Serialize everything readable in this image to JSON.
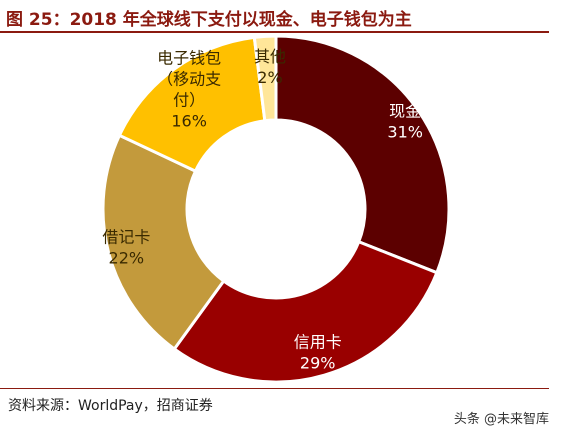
{
  "title": "图 25：2018 年全球线下支付以现金、电子钱包为主",
  "source": "资料来源：WorldPay，招商证券",
  "watermark": "头条 @未来智库",
  "chart_data": {
    "type": "pie",
    "donut": true,
    "slices": [
      {
        "label_lines": [
          "现金"
        ],
        "pct_text": "31%",
        "value": 31,
        "color": "#5c0000",
        "text_color": "#ffffff"
      },
      {
        "label_lines": [
          "信用卡"
        ],
        "pct_text": "29%",
        "value": 29,
        "color": "#990000",
        "text_color": "#ffffff"
      },
      {
        "label_lines": [
          "借记卡"
        ],
        "pct_text": "22%",
        "value": 22,
        "color": "#c39a3c",
        "text_color": "#3a2a00"
      },
      {
        "label_lines": [
          "电子钱包",
          "（移动支",
          "付）"
        ],
        "pct_text": "16%",
        "value": 16,
        "color": "#ffc000",
        "text_color": "#3a2a00"
      },
      {
        "label_lines": [
          "其他"
        ],
        "pct_text": "2%",
        "value": 2,
        "color": "#ffe699",
        "text_color": "#3a2a00"
      }
    ]
  }
}
